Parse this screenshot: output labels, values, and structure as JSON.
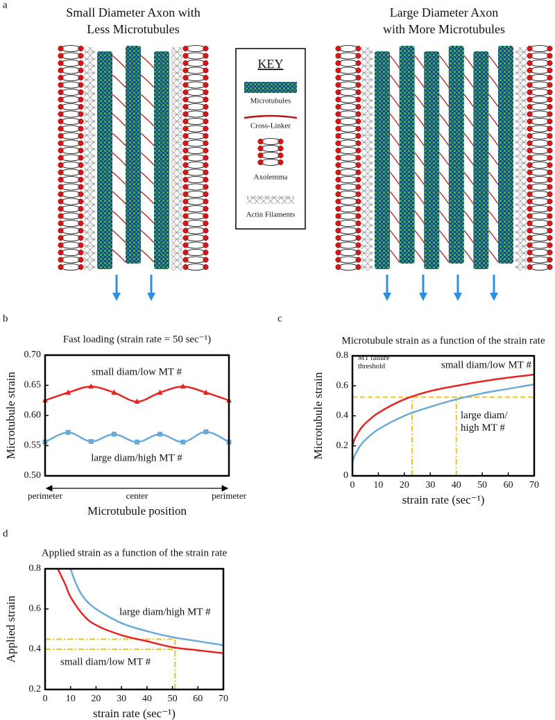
{
  "panel_labels": [
    "a",
    "b",
    "c",
    "d"
  ],
  "diagram": {
    "left_title": [
      "Small Diameter Axon with",
      "Less Microtubules"
    ],
    "right_title": [
      "Large Diameter Axon",
      "with More Microtubules"
    ],
    "key": {
      "title": "KEY",
      "items": [
        "Microtubules",
        "Cross-Linker",
        "Axolemma",
        "Actin Filaments"
      ]
    }
  },
  "chart_data": [
    {
      "type": "line",
      "title": "Fast loading (strain rate = 50 sec⁻¹)",
      "x_label": "Microtubule position",
      "y_label": "Microtubule strain",
      "categories": [
        "perimeter",
        null,
        null,
        null,
        "center",
        null,
        null,
        null,
        "perimeter"
      ],
      "series": [
        {
          "name": "small diam/low MT #",
          "color": "#e8231f",
          "marker": "triangle",
          "values": [
            0.625,
            0.638,
            0.648,
            0.638,
            0.623,
            0.638,
            0.648,
            0.638,
            0.625
          ]
        },
        {
          "name": "large diam/high MT #",
          "color": "#6aaad8",
          "marker": "square",
          "values": [
            0.556,
            0.572,
            0.557,
            0.569,
            0.556,
            0.569,
            0.556,
            0.573,
            0.556
          ]
        }
      ],
      "ylim": [
        0.5,
        0.7
      ],
      "yticks": [
        {
          "value": 0.5,
          "label": "0.50"
        },
        0.55,
        {
          "value": 0.6,
          "label": "0.60"
        },
        0.65,
        {
          "value": 0.7,
          "label": "0.70"
        }
      ]
    },
    {
      "type": "line",
      "title": "Microtubule strain as a function of the strain rate",
      "x_label": "strain rate (sec⁻¹)",
      "y_label": "Microtubule strain",
      "annotations": [
        "MT failure threshold"
      ],
      "series": [
        {
          "name": "small diam/low MT #",
          "color": "#e8231f",
          "x": [
            0,
            1,
            3,
            5,
            10,
            20,
            30,
            40,
            50,
            60,
            70
          ],
          "values": [
            0.2,
            0.25,
            0.31,
            0.35,
            0.42,
            0.51,
            0.565,
            0.6,
            0.63,
            0.655,
            0.675
          ]
        },
        {
          "name": "large diam/high MT #",
          "color": "#6aaad8",
          "x": [
            0,
            1,
            3,
            5,
            10,
            20,
            30,
            40,
            50,
            60,
            70
          ],
          "values": [
            0.09,
            0.14,
            0.2,
            0.24,
            0.31,
            0.4,
            0.46,
            0.51,
            0.55,
            0.58,
            0.61
          ]
        }
      ],
      "reference_lines": {
        "y": 0.525,
        "x": [
          23,
          40
        ]
      },
      "xlim": [
        0,
        70
      ],
      "xticks": [
        0,
        10,
        20,
        30,
        40,
        50,
        60,
        70
      ],
      "ylim": [
        0,
        0.8
      ],
      "yticks": [
        0,
        0.2,
        0.4,
        0.6,
        0.8
      ]
    },
    {
      "type": "line",
      "title": "Applied strain as a function of the strain rate",
      "x_label": "strain rate (sec⁻¹)",
      "y_label": "Applied strain",
      "series": [
        {
          "name": "small diam/low MT #",
          "color": "#e8231f",
          "x": [
            5,
            8,
            10,
            15,
            20,
            30,
            40,
            50,
            60,
            70
          ],
          "values": [
            0.8,
            0.72,
            0.66,
            0.57,
            0.52,
            0.47,
            0.44,
            0.41,
            0.395,
            0.38
          ]
        },
        {
          "name": "large diam/high MT #",
          "color": "#6aaad8",
          "x": [
            10,
            12,
            15,
            20,
            30,
            40,
            50,
            60,
            70
          ],
          "values": [
            0.8,
            0.73,
            0.66,
            0.6,
            0.53,
            0.49,
            0.46,
            0.44,
            0.42
          ]
        }
      ],
      "reference_lines": {
        "y": [
          0.45,
          0.4
        ],
        "x": 51
      },
      "xlim": [
        0,
        70
      ],
      "xticks": [
        0,
        10,
        20,
        30,
        40,
        50,
        60,
        70
      ],
      "ylim": [
        0.2,
        0.8
      ],
      "yticks": [
        0.2,
        0.4,
        0.6,
        0.8
      ]
    }
  ]
}
